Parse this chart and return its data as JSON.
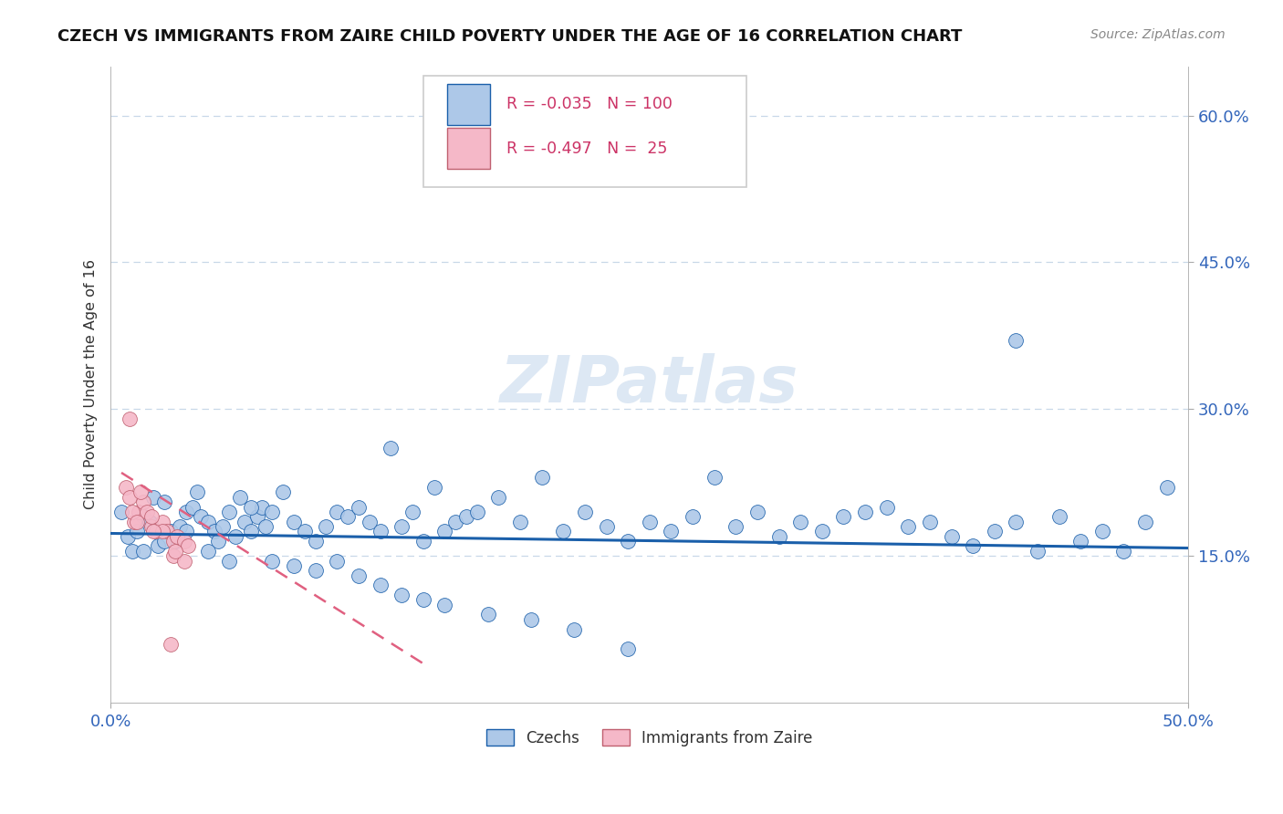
{
  "title": "CZECH VS IMMIGRANTS FROM ZAIRE CHILD POVERTY UNDER THE AGE OF 16 CORRELATION CHART",
  "source": "Source: ZipAtlas.com",
  "ylabel": "Child Poverty Under the Age of 16",
  "xlim": [
    0.0,
    0.5
  ],
  "ylim": [
    0.0,
    0.65
  ],
  "yticks": [
    0.15,
    0.3,
    0.45,
    0.6
  ],
  "ytick_labels": [
    "15.0%",
    "30.0%",
    "45.0%",
    "60.0%"
  ],
  "xticks": [
    0.0,
    0.5
  ],
  "xtick_labels": [
    "0.0%",
    "50.0%"
  ],
  "legend_R1": "R = -0.035",
  "legend_N1": "N = 100",
  "legend_R2": "R = -0.497",
  "legend_N2": "N =  25",
  "legend_label1": "Czechs",
  "legend_label2": "Immigrants from Zaire",
  "color_blue": "#adc8e8",
  "color_pink": "#f5b8c8",
  "trend_blue": "#1a5faa",
  "trend_pink": "#e06080",
  "watermark": "ZIPatlas",
  "grid_color": "#c8d8e8",
  "czechs_x": [
    0.005,
    0.008,
    0.01,
    0.012,
    0.015,
    0.018,
    0.02,
    0.022,
    0.025,
    0.028,
    0.03,
    0.032,
    0.035,
    0.038,
    0.04,
    0.042,
    0.045,
    0.048,
    0.05,
    0.052,
    0.055,
    0.058,
    0.06,
    0.062,
    0.065,
    0.068,
    0.07,
    0.072,
    0.075,
    0.08,
    0.085,
    0.09,
    0.095,
    0.1,
    0.105,
    0.11,
    0.115,
    0.12,
    0.125,
    0.13,
    0.135,
    0.14,
    0.145,
    0.15,
    0.155,
    0.16,
    0.165,
    0.17,
    0.18,
    0.19,
    0.2,
    0.21,
    0.22,
    0.23,
    0.24,
    0.25,
    0.26,
    0.27,
    0.28,
    0.29,
    0.3,
    0.31,
    0.32,
    0.33,
    0.34,
    0.35,
    0.36,
    0.37,
    0.38,
    0.39,
    0.4,
    0.41,
    0.42,
    0.43,
    0.44,
    0.45,
    0.46,
    0.47,
    0.48,
    0.49,
    0.015,
    0.025,
    0.035,
    0.045,
    0.055,
    0.065,
    0.075,
    0.085,
    0.095,
    0.105,
    0.115,
    0.125,
    0.135,
    0.145,
    0.155,
    0.175,
    0.195,
    0.215,
    0.24,
    0.42
  ],
  "czechs_y": [
    0.195,
    0.17,
    0.155,
    0.175,
    0.19,
    0.185,
    0.21,
    0.16,
    0.205,
    0.175,
    0.165,
    0.18,
    0.195,
    0.2,
    0.215,
    0.19,
    0.185,
    0.175,
    0.165,
    0.18,
    0.195,
    0.17,
    0.21,
    0.185,
    0.175,
    0.19,
    0.2,
    0.18,
    0.195,
    0.215,
    0.185,
    0.175,
    0.165,
    0.18,
    0.195,
    0.19,
    0.2,
    0.185,
    0.175,
    0.26,
    0.18,
    0.195,
    0.165,
    0.22,
    0.175,
    0.185,
    0.19,
    0.195,
    0.21,
    0.185,
    0.23,
    0.175,
    0.195,
    0.18,
    0.165,
    0.185,
    0.175,
    0.19,
    0.23,
    0.18,
    0.195,
    0.17,
    0.185,
    0.175,
    0.19,
    0.195,
    0.2,
    0.18,
    0.185,
    0.17,
    0.16,
    0.175,
    0.185,
    0.155,
    0.19,
    0.165,
    0.175,
    0.155,
    0.185,
    0.22,
    0.155,
    0.165,
    0.175,
    0.155,
    0.145,
    0.2,
    0.145,
    0.14,
    0.135,
    0.145,
    0.13,
    0.12,
    0.11,
    0.105,
    0.1,
    0.09,
    0.085,
    0.075,
    0.055,
    0.37
  ],
  "zaire_x": [
    0.007,
    0.009,
    0.011,
    0.013,
    0.015,
    0.017,
    0.019,
    0.021,
    0.024,
    0.026,
    0.029,
    0.031,
    0.034,
    0.036,
    0.009,
    0.014,
    0.019,
    0.024,
    0.029,
    0.034,
    0.01,
    0.02,
    0.03,
    0.012,
    0.028
  ],
  "zaire_y": [
    0.22,
    0.21,
    0.185,
    0.195,
    0.205,
    0.195,
    0.18,
    0.175,
    0.185,
    0.175,
    0.165,
    0.17,
    0.165,
    0.16,
    0.29,
    0.215,
    0.19,
    0.175,
    0.15,
    0.145,
    0.195,
    0.175,
    0.155,
    0.185,
    0.06
  ],
  "blue_trend_x": [
    0.0,
    0.5
  ],
  "blue_trend_y": [
    0.173,
    0.158
  ],
  "pink_trend_x": [
    0.005,
    0.145
  ],
  "pink_trend_y": [
    0.235,
    0.04
  ]
}
